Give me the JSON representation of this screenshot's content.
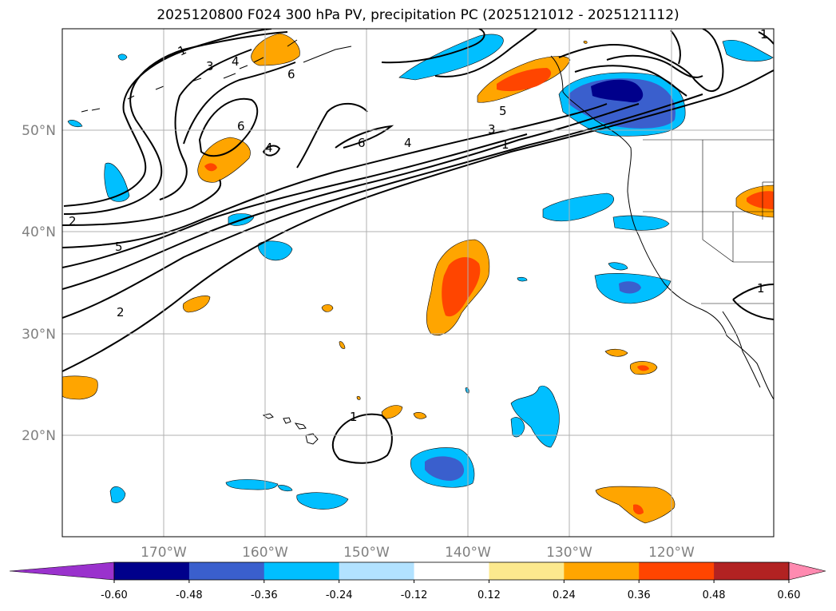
{
  "title": "2025120800 F024 300 hPa PV, precipitation PC (2025121012 - 2025121112)",
  "lat_labels": [
    "50°N",
    "40°N",
    "30°N",
    "20°N"
  ],
  "lon_labels": [
    "170°W",
    "160°W",
    "150°W",
    "140°W",
    "130°W",
    "120°W"
  ],
  "contour_labels": [
    "1",
    "3",
    "4",
    "6",
    "6",
    "4",
    "6",
    "4",
    "5",
    "3",
    "1",
    "2",
    "5",
    "2",
    "1",
    "1",
    "1"
  ],
  "colorbar": {
    "ticks": [
      "-0.60",
      "-0.48",
      "-0.36",
      "-0.24",
      "-0.12",
      "0.12",
      "0.24",
      "0.36",
      "0.48",
      "0.60"
    ],
    "colors": [
      "#9a32cd",
      "#00008b",
      "#3a5fcd",
      "#00bfff",
      "#b2e2ff",
      "#ffffff",
      "#fce98e",
      "#ffa500",
      "#ff4500",
      "#b22222",
      "#ff8ab0"
    ]
  },
  "colors": {
    "blue_dark": "#00008b",
    "blue_mid": "#3a5fcd",
    "blue_light": "#00bfff",
    "orange": "#ffa500",
    "orangered": "#ff4500",
    "grid": "#b0b0b0",
    "axis_text": "#808080"
  }
}
